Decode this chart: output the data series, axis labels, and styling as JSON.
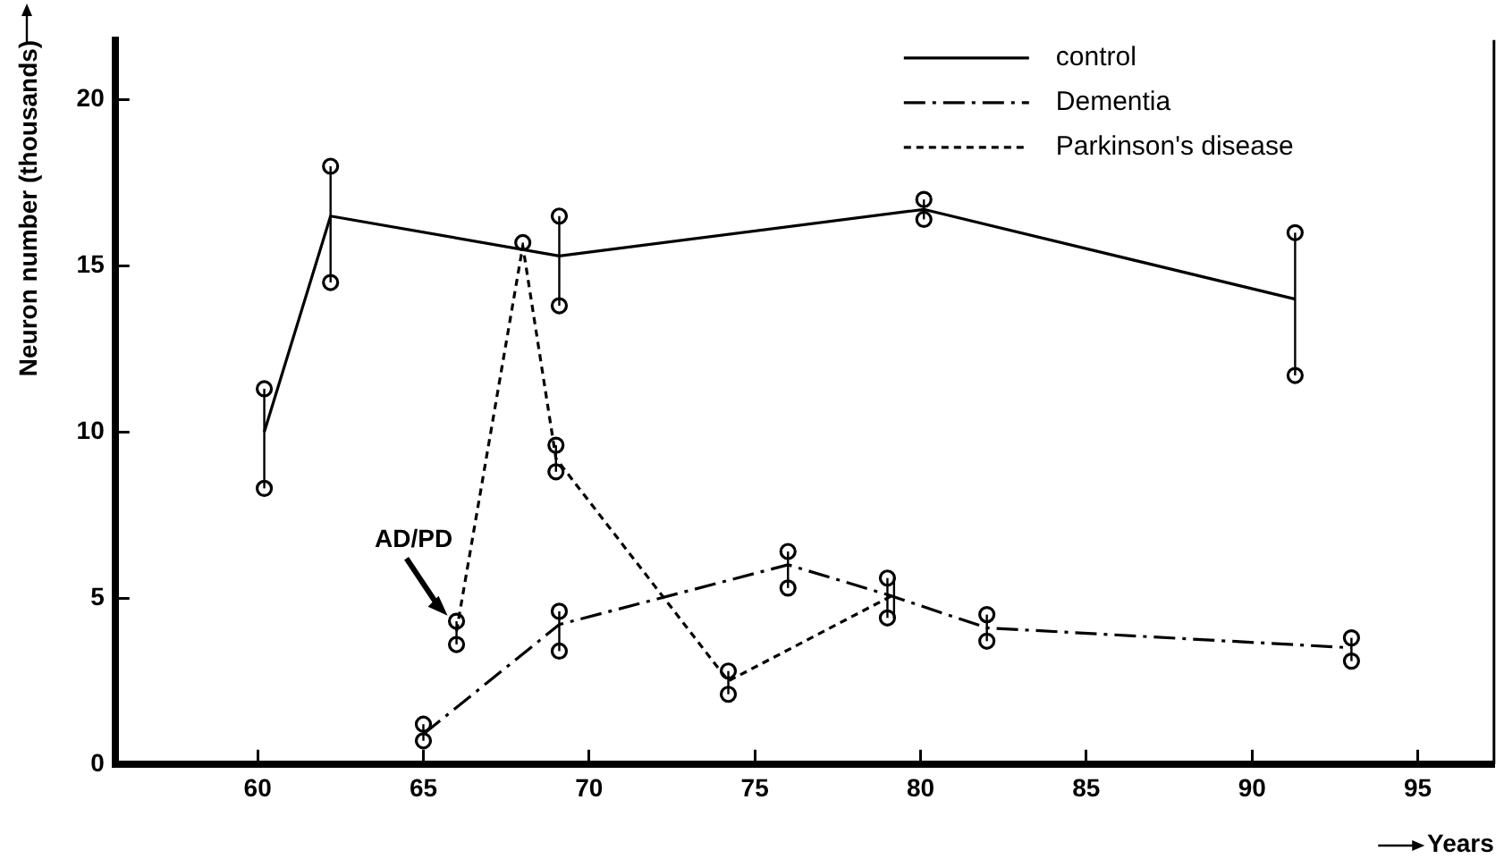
{
  "chart_data": {
    "type": "line",
    "xlabel": "Years",
    "ylabel": "Neuron number (thousands)",
    "xlim": [
      55.7,
      97.3
    ],
    "xticks": [
      60,
      65,
      70,
      75,
      80,
      85,
      90,
      95
    ],
    "ylim": [
      0,
      21.8
    ],
    "yticks": [
      0,
      5,
      10,
      15,
      20
    ],
    "grid": false,
    "legend": "top right",
    "marker": "none",
    "annotations": [
      {
        "text": "AD/PD",
        "x": 66,
        "y": 4.2
      }
    ],
    "series": [
      {
        "name": "control",
        "color": "#000000",
        "line_style": "solid",
        "x": [
          60.2,
          62.2,
          69.1,
          80.1,
          91.3
        ],
        "values": [
          10.0,
          16.5,
          15.3,
          16.7,
          14.0
        ],
        "errors": [
          [
            8.3,
            11.3
          ],
          [
            14.5,
            18.0
          ],
          [
            13.8,
            16.5
          ],
          [
            16.4,
            17.0
          ],
          [
            11.7,
            16.0
          ]
        ]
      },
      {
        "name": "Dementia",
        "color": "#000000",
        "line_style": "dashed",
        "x": [
          65,
          69.1,
          76,
          79,
          82,
          93
        ],
        "values": [
          0.9,
          4.2,
          6.0,
          5.1,
          4.1,
          3.5
        ],
        "errors": [
          [
            0.7,
            1.2
          ],
          [
            3.4,
            4.6
          ],
          [
            5.3,
            6.4
          ],
          [
            4.4,
            5.6
          ],
          [
            3.7,
            4.5
          ],
          [
            3.1,
            3.8
          ]
        ]
      },
      {
        "name": "Parkinson's disease",
        "color": "#000000",
        "line_style": "dotted",
        "x": [
          66,
          68,
          69,
          74.2,
          79.2
        ],
        "values": [
          4.0,
          15.6,
          9.2,
          2.5,
          5.1
        ],
        "errors": [
          [
            3.6,
            4.3
          ],
          [
            15.5,
            15.7
          ],
          [
            8.8,
            9.6
          ],
          [
            2.1,
            2.8
          ],
          [
            4.4,
            5.6
          ]
        ]
      },
      {
        "type": "scatter",
        "color": "#000000",
        "marker": "circle",
        "x": [
          60.2,
          60.2,
          62.2,
          62.2,
          69.1,
          69.1,
          80.1,
          80.1,
          91.3,
          91.3,
          65,
          65,
          69.1,
          69.1,
          76,
          76,
          79,
          79,
          82,
          82,
          93,
          93,
          66,
          66,
          68,
          69,
          69,
          74.2,
          74.2
        ],
        "values": [
          8.3,
          11.3,
          14.5,
          18.0,
          13.8,
          16.5,
          16.4,
          17.0,
          11.7,
          16.0,
          0.7,
          1.2,
          3.4,
          4.6,
          5.3,
          6.4,
          4.4,
          5.6,
          3.7,
          4.5,
          3.1,
          3.8,
          3.6,
          4.3,
          15.7,
          8.8,
          9.6,
          2.1,
          2.8
        ]
      }
    ]
  }
}
